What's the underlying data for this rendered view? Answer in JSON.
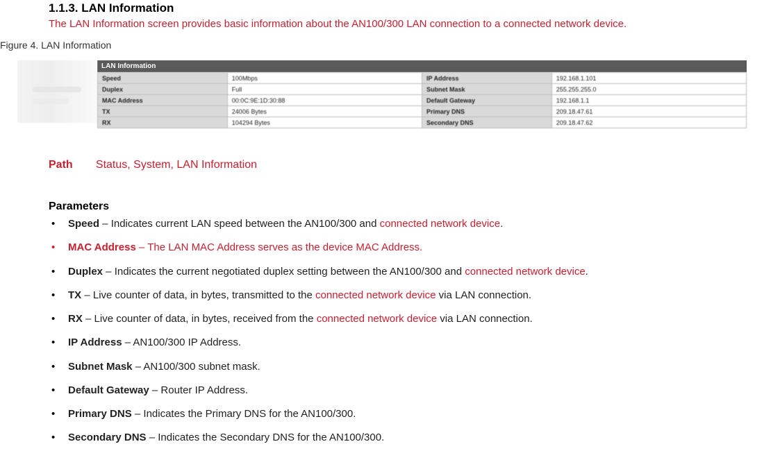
{
  "heading": "1.1.3. LAN Information",
  "subtitle": "The LAN Information screen provides basic information about the AN100/300 LAN connection to a connected network device.",
  "figure_caption": "Figure 4. LAN Information",
  "table": {
    "title": "LAN Information",
    "rows": [
      {
        "l1": "Speed",
        "v1": "100Mbps",
        "l2": "IP Address",
        "v2": "192.168.1.101"
      },
      {
        "l1": "Duplex",
        "v1": "Full",
        "l2": "Subnet Mask",
        "v2": "255.255.255.0"
      },
      {
        "l1": "MAC Address",
        "v1": "00:0C:9E:1D:30:88",
        "l2": "Default Gateway",
        "v2": "192.168.1.1"
      },
      {
        "l1": "TX",
        "v1": "24006 Bytes",
        "l2": "Primary DNS",
        "v2": "209.18.47.61"
      },
      {
        "l1": "RX",
        "v1": "104294 Bytes",
        "l2": "Secondary DNS",
        "v2": "209.18.47.62"
      }
    ]
  },
  "path": {
    "label": "Path",
    "value": "Status, System, LAN Information"
  },
  "parameters_heading": "Parameters",
  "parameters": [
    {
      "name": "Speed",
      "pre": " – Indicates current LAN speed between the AN100/300 and ",
      "red": "connected network device",
      "post": ".",
      "name_red": false,
      "bullet_red": false,
      "all_red": false
    },
    {
      "name": "MAC Address",
      "pre": " – The LAN MAC Address serves as the device MAC Address.",
      "red": "",
      "post": "",
      "name_red": true,
      "bullet_red": true,
      "all_red": true
    },
    {
      "name": "Duplex",
      "pre": " – Indicates the current negotiated duplex setting between the AN100/300 and ",
      "red": "connected network device",
      "post": ".",
      "name_red": false,
      "bullet_red": false,
      "all_red": false
    },
    {
      "name": "TX",
      "pre": " – Live counter of data, in bytes, transmitted to the ",
      "red": "connected network device",
      "post": " via LAN connection.",
      "name_red": false,
      "bullet_red": false,
      "all_red": false
    },
    {
      "name": "RX",
      "pre": " – Live counter of data, in bytes, received from the ",
      "red": "connected network device",
      "post": " via LAN connection.",
      "name_red": false,
      "bullet_red": false,
      "all_red": false
    },
    {
      "name": "IP Address",
      "pre": " – AN100/300 IP Address.",
      "red": "",
      "post": "",
      "name_red": false,
      "bullet_red": false,
      "all_red": false
    },
    {
      "name": "Subnet Mask",
      "pre": " – AN100/300 subnet mask.",
      "red": "",
      "post": "",
      "name_red": false,
      "bullet_red": false,
      "all_red": false
    },
    {
      "name": "Default Gateway",
      "pre": " – Router IP Address.",
      "red": "",
      "post": "",
      "name_red": false,
      "bullet_red": false,
      "all_red": false
    },
    {
      "name": "Primary DNS",
      "pre": " – Indicates the Primary DNS for the AN100/300.",
      "red": "",
      "post": "",
      "name_red": false,
      "bullet_red": false,
      "all_red": false
    },
    {
      "name": "Secondary DNS",
      "pre": " – Indicates the Secondary DNS for the AN100/300.",
      "red": "",
      "post": "",
      "name_red": false,
      "bullet_red": false,
      "all_red": false
    }
  ]
}
